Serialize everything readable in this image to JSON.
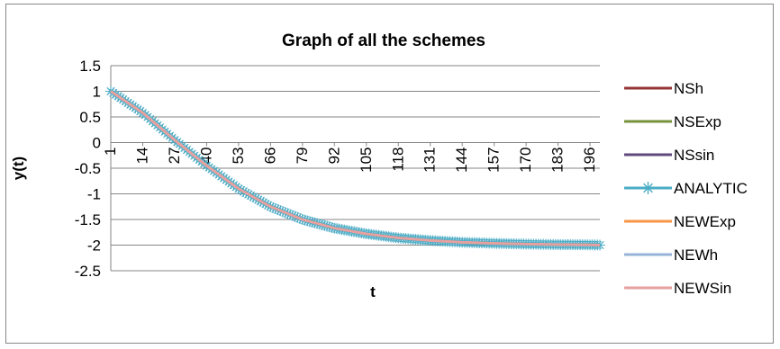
{
  "chart_data": {
    "type": "line",
    "title": "Graph of all the schemes",
    "xlabel": "t",
    "ylabel": "y(t)",
    "ylim": [
      -2.5,
      1.5
    ],
    "yticks": [
      1.5,
      1,
      0.5,
      0,
      -0.5,
      -1,
      -1.5,
      -2,
      -2.5
    ],
    "x_range": [
      1,
      200
    ],
    "xticks": [
      1,
      14,
      27,
      40,
      53,
      66,
      79,
      92,
      105,
      118,
      131,
      144,
      157,
      170,
      183,
      196
    ],
    "grid": "horizontal",
    "legend_position": "right",
    "x_samples": [
      1,
      14,
      27,
      40,
      53,
      66,
      79,
      92,
      105,
      118,
      131,
      144,
      157,
      170,
      183,
      196,
      200
    ],
    "y_samples": [
      1.0,
      0.58,
      0.05,
      -0.45,
      -0.9,
      -1.25,
      -1.5,
      -1.67,
      -1.78,
      -1.86,
      -1.91,
      -1.945,
      -1.965,
      -1.98,
      -1.99,
      -1.995,
      -2.0
    ],
    "series": [
      {
        "name": "NSh",
        "color": "#943634",
        "marker": "none"
      },
      {
        "name": "NSExp",
        "color": "#77933c",
        "marker": "none"
      },
      {
        "name": "NSsin",
        "color": "#604a7b",
        "marker": "none"
      },
      {
        "name": "ANALYTIC",
        "color": "#4bacc6",
        "marker": "star"
      },
      {
        "name": "NEWExp",
        "color": "#f79646",
        "marker": "none"
      },
      {
        "name": "NEWh",
        "color": "#95b3d7",
        "marker": "none"
      },
      {
        "name": "NEWSin",
        "color": "#e6a19f",
        "marker": "none"
      }
    ]
  }
}
